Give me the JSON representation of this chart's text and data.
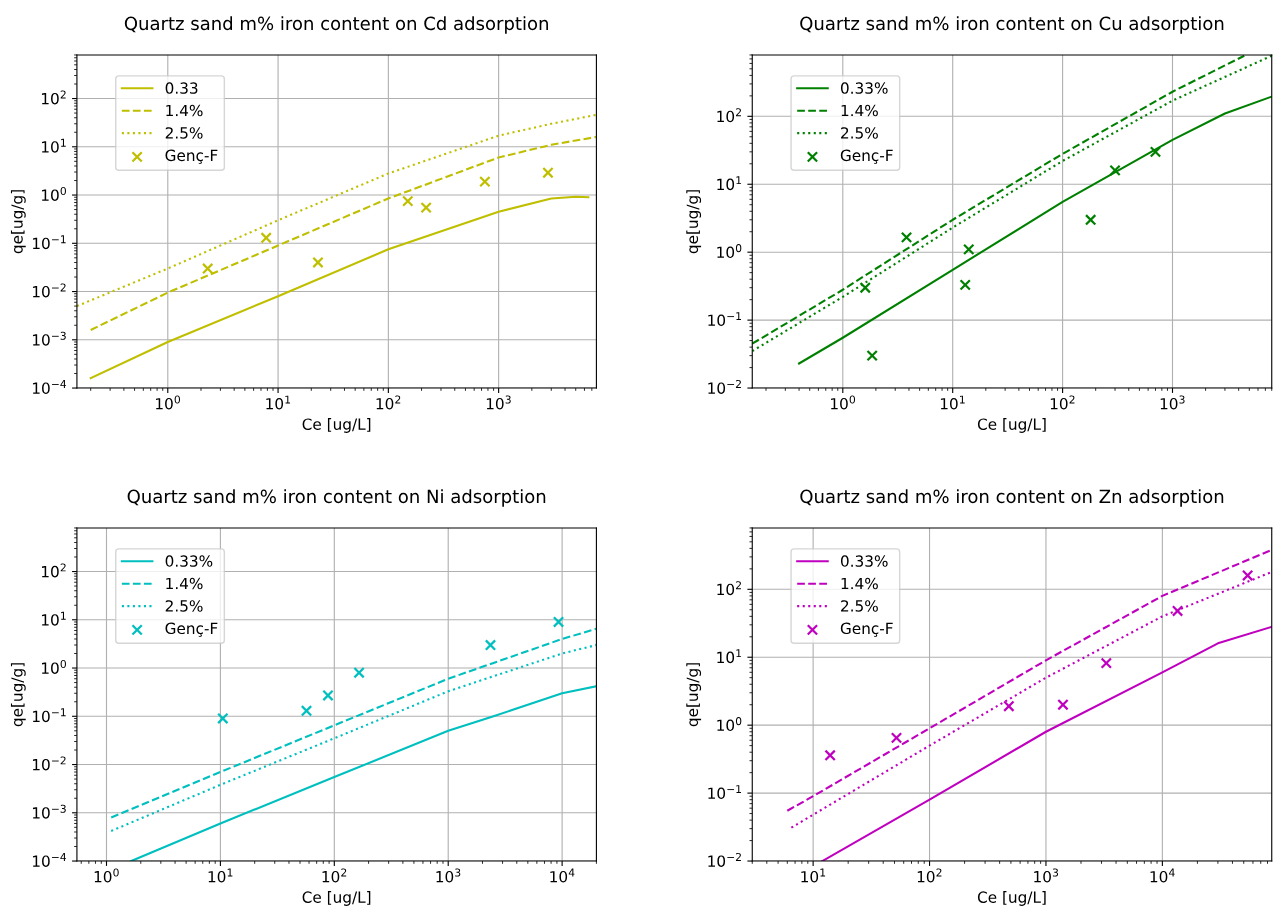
{
  "chart_data": [
    {
      "type": "line",
      "title": "Quartz sand m% iron content on Cd adsorption",
      "xlabel": "Ce [ug/L]",
      "ylabel": "qe[ug/g]",
      "log": "xy",
      "grid": true,
      "legend": "top left",
      "xlim": [
        0.15,
        7700
      ],
      "ylim": [
        0.0001,
        800
      ],
      "xticks": [
        {
          "value": 1,
          "label": "10$^{0}$"
        },
        {
          "value": 10,
          "label": "10$^{1}$"
        },
        {
          "value": 100,
          "label": "10$^{2}$"
        },
        {
          "value": 1000,
          "label": "10$^{3}$"
        }
      ],
      "yticks": [
        {
          "value": 0.0001,
          "label": "10$^{−4}$"
        },
        {
          "value": 0.001,
          "label": "10$^{−3}$"
        },
        {
          "value": 0.01,
          "label": "10$^{−2}$"
        },
        {
          "value": 0.1,
          "label": "10$^{−1}$"
        },
        {
          "value": 1,
          "label": "10$^{0}$"
        },
        {
          "value": 10,
          "label": "10$^{1}$"
        },
        {
          "value": 100,
          "label": "10$^{2}$"
        }
      ],
      "series": [
        {
          "name": "0.33",
          "line_style": "solid",
          "color": "#bfbf00",
          "x": [
            0.2,
            1,
            10,
            100,
            1000,
            3000,
            5000,
            6500
          ],
          "values": [
            0.00016,
            0.0009,
            0.008,
            0.075,
            0.45,
            0.85,
            0.92,
            0.9
          ]
        },
        {
          "name": "1.4%",
          "line_style": "dashed",
          "color": "#bfbf00",
          "x": [
            0.2,
            1,
            10,
            100,
            1000,
            3000,
            7700
          ],
          "values": [
            0.0016,
            0.0095,
            0.09,
            0.85,
            6,
            11,
            16
          ]
        },
        {
          "name": "2.5%",
          "line_style": "dotted",
          "color": "#bfbf00",
          "x": [
            0.15,
            1,
            10,
            100,
            1000,
            3000,
            7700
          ],
          "values": [
            0.005,
            0.03,
            0.3,
            2.8,
            17,
            30,
            46
          ]
        },
        {
          "name": "Genç-F",
          "type": "scatter",
          "marker": "cross",
          "color": "#bfbf00",
          "x": [
            2.3,
            7.8,
            23,
            150,
            220,
            750,
            2800
          ],
          "values": [
            0.03,
            0.13,
            0.04,
            0.75,
            0.55,
            1.9,
            2.9
          ]
        }
      ]
    },
    {
      "type": "line",
      "title": "Quartz sand m% iron content on Cu adsorption",
      "xlabel": "Ce [ug/L]",
      "ylabel": "qe[ug/g]",
      "log": "xy",
      "grid": true,
      "legend": "top left",
      "xlim": [
        0.15,
        8000
      ],
      "ylim": [
        0.01,
        800
      ],
      "xticks": [
        {
          "value": 1,
          "label": "10$^{0}$"
        },
        {
          "value": 10,
          "label": "10$^{1}$"
        },
        {
          "value": 100,
          "label": "10$^{2}$"
        },
        {
          "value": 1000,
          "label": "10$^{3}$"
        }
      ],
      "yticks": [
        {
          "value": 0.01,
          "label": "10$^{−2}$"
        },
        {
          "value": 0.1,
          "label": "10$^{−1}$"
        },
        {
          "value": 1,
          "label": "10$^{0}$"
        },
        {
          "value": 10,
          "label": "10$^{1}$"
        },
        {
          "value": 100,
          "label": "10$^{2}$"
        }
      ],
      "series": [
        {
          "name": "0.33%",
          "line_style": "solid",
          "color": "#008000",
          "x": [
            0.4,
            1,
            10,
            100,
            1000,
            3000,
            8000
          ],
          "values": [
            0.023,
            0.055,
            0.55,
            5.5,
            45,
            110,
            195
          ]
        },
        {
          "name": "1.4%",
          "line_style": "dashed",
          "color": "#008000",
          "x": [
            0.15,
            1,
            10,
            100,
            1000,
            4500
          ],
          "values": [
            0.045,
            0.28,
            3,
            28,
            230,
            780
          ]
        },
        {
          "name": "2.5%",
          "line_style": "dotted",
          "color": "#008000",
          "x": [
            0.15,
            1,
            10,
            100,
            1000,
            8000
          ],
          "values": [
            0.035,
            0.22,
            2.3,
            22,
            170,
            780
          ]
        },
        {
          "name": "Genç-F",
          "type": "scatter",
          "marker": "cross",
          "color": "#008000",
          "x": [
            1.6,
            1.85,
            3.8,
            13,
            14,
            180,
            300,
            700
          ],
          "values": [
            0.3,
            0.03,
            1.65,
            0.33,
            1.1,
            3,
            16,
            30
          ]
        }
      ]
    },
    {
      "type": "line",
      "title": "Quartz sand m% iron content on Ni adsorption",
      "xlabel": "Ce [ug/L]",
      "ylabel": "qe[ug/g]",
      "log": "xy",
      "grid": true,
      "legend": "top left",
      "xlim": [
        0.55,
        20000
      ],
      "ylim": [
        0.0001,
        800
      ],
      "xticks": [
        {
          "value": 1,
          "label": "10$^{0}$"
        },
        {
          "value": 10,
          "label": "10$^{1}$"
        },
        {
          "value": 100,
          "label": "10$^{2}$"
        },
        {
          "value": 1000,
          "label": "10$^{3}$"
        },
        {
          "value": 10000,
          "label": "10$^{4}$"
        }
      ],
      "yticks": [
        {
          "value": 0.0001,
          "label": "10$^{−4}$"
        },
        {
          "value": 0.001,
          "label": "10$^{−3}$"
        },
        {
          "value": 0.01,
          "label": "10$^{−2}$"
        },
        {
          "value": 0.1,
          "label": "10$^{−1}$"
        },
        {
          "value": 1,
          "label": "10$^{0}$"
        },
        {
          "value": 10,
          "label": "10$^{1}$"
        },
        {
          "value": 100,
          "label": "10$^{2}$"
        }
      ],
      "series": [
        {
          "name": "0.33%",
          "line_style": "solid",
          "color": "#00bfbf",
          "x": [
            1.65,
            10,
            100,
            1000,
            2500,
            10000,
            20000
          ],
          "values": [
            0.0001,
            0.0006,
            0.0055,
            0.05,
            0.1,
            0.3,
            0.42
          ]
        },
        {
          "name": "1.4%",
          "line_style": "dashed",
          "color": "#00bfbf",
          "x": [
            1.1,
            10,
            100,
            1000,
            10000,
            20000
          ],
          "values": [
            0.0008,
            0.007,
            0.065,
            0.6,
            4,
            6.5
          ]
        },
        {
          "name": "2.5%",
          "line_style": "dotted",
          "color": "#00bfbf",
          "x": [
            1.1,
            10,
            100,
            1000,
            10000,
            20000
          ],
          "values": [
            0.00042,
            0.0038,
            0.035,
            0.33,
            2,
            3
          ]
        },
        {
          "name": "Genç-F",
          "type": "scatter",
          "marker": "cross",
          "color": "#00bfbf",
          "x": [
            10.5,
            57,
            88,
            165,
            2350,
            9300
          ],
          "values": [
            0.09,
            0.13,
            0.27,
            0.8,
            3,
            9
          ]
        }
      ]
    },
    {
      "type": "line",
      "title": "Quartz sand m% iron content on Zn adsorption",
      "xlabel": "Ce [ug/L]",
      "ylabel": "qe[ug/g]",
      "log": "xy",
      "grid": true,
      "legend": "top left",
      "xlim": [
        3,
        87000
      ],
      "ylim": [
        0.01,
        800
      ],
      "xticks": [
        {
          "value": 10,
          "label": "10$^{1}$"
        },
        {
          "value": 100,
          "label": "10$^{2}$"
        },
        {
          "value": 1000,
          "label": "10$^{3}$"
        },
        {
          "value": 10000,
          "label": "10$^{4}$"
        }
      ],
      "yticks": [
        {
          "value": 0.01,
          "label": "10$^{−2}$"
        },
        {
          "value": 0.1,
          "label": "10$^{−1}$"
        },
        {
          "value": 1,
          "label": "10$^{0}$"
        },
        {
          "value": 10,
          "label": "10$^{1}$"
        },
        {
          "value": 100,
          "label": "10$^{2}$"
        }
      ],
      "series": [
        {
          "name": "0.33%",
          "line_style": "solid",
          "color": "#bf00bf",
          "x": [
            12,
            100,
            1000,
            10000,
            30000,
            87000
          ],
          "values": [
            0.01,
            0.08,
            0.8,
            6,
            16,
            28
          ]
        },
        {
          "name": "1.4%",
          "line_style": "dashed",
          "color": "#bf00bf",
          "x": [
            6,
            10,
            100,
            1000,
            10000,
            87000
          ],
          "values": [
            0.055,
            0.09,
            0.9,
            9,
            80,
            380
          ]
        },
        {
          "name": "2.5%",
          "line_style": "dotted",
          "color": "#bf00bf",
          "x": [
            6.5,
            100,
            1000,
            10000,
            87000
          ],
          "values": [
            0.031,
            0.5,
            5,
            40,
            180
          ]
        },
        {
          "name": "Genç-F",
          "type": "scatter",
          "marker": "cross",
          "color": "#bf00bf",
          "x": [
            14,
            52,
            480,
            1400,
            3300,
            13500,
            54000
          ],
          "values": [
            0.36,
            0.65,
            1.9,
            2.0,
            8.2,
            48,
            160
          ]
        }
      ]
    }
  ]
}
